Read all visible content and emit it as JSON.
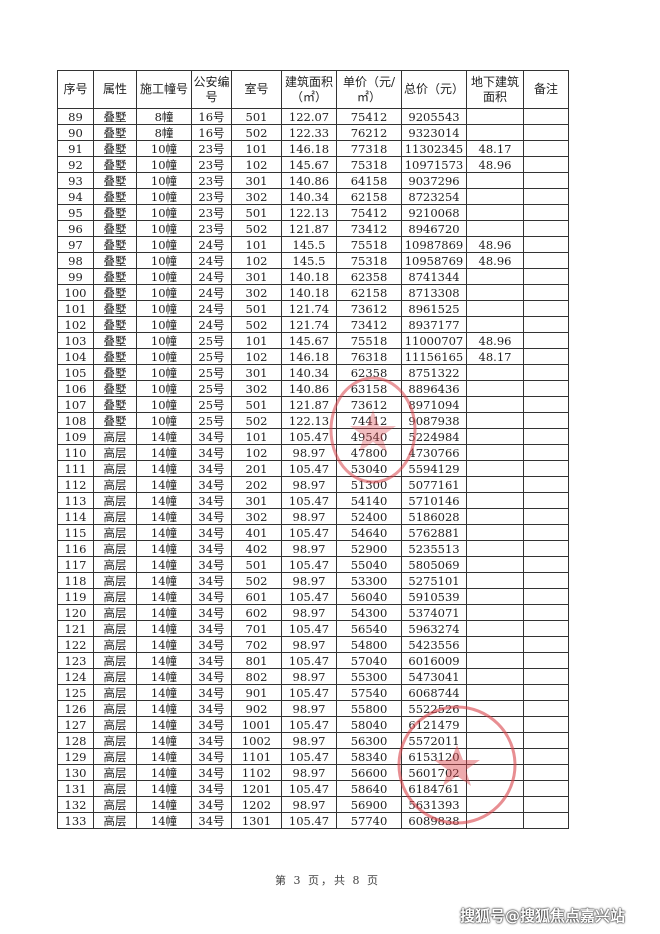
{
  "headers": [
    "序号",
    "属性",
    "施工幢号",
    "公安编号",
    "室号",
    "建筑面积（㎡）",
    "单价（元/㎡）",
    "总价（元）",
    "地下建筑面积",
    "备注"
  ],
  "rows": [
    [
      "89",
      "叠墅",
      "8幢",
      "16号",
      "501",
      "122.07",
      "75412",
      "9205543",
      "",
      ""
    ],
    [
      "90",
      "叠墅",
      "8幢",
      "16号",
      "502",
      "122.33",
      "76212",
      "9323014",
      "",
      ""
    ],
    [
      "91",
      "叠墅",
      "10幢",
      "23号",
      "101",
      "146.18",
      "77318",
      "11302345",
      "48.17",
      ""
    ],
    [
      "92",
      "叠墅",
      "10幢",
      "23号",
      "102",
      "145.67",
      "75318",
      "10971573",
      "48.96",
      ""
    ],
    [
      "93",
      "叠墅",
      "10幢",
      "23号",
      "301",
      "140.86",
      "64158",
      "9037296",
      "",
      ""
    ],
    [
      "94",
      "叠墅",
      "10幢",
      "23号",
      "302",
      "140.34",
      "62158",
      "8723254",
      "",
      ""
    ],
    [
      "95",
      "叠墅",
      "10幢",
      "23号",
      "501",
      "122.13",
      "75412",
      "9210068",
      "",
      ""
    ],
    [
      "96",
      "叠墅",
      "10幢",
      "23号",
      "502",
      "121.87",
      "73412",
      "8946720",
      "",
      ""
    ],
    [
      "97",
      "叠墅",
      "10幢",
      "24号",
      "101",
      "145.5",
      "75518",
      "10987869",
      "48.96",
      ""
    ],
    [
      "98",
      "叠墅",
      "10幢",
      "24号",
      "102",
      "145.5",
      "75318",
      "10958769",
      "48.96",
      ""
    ],
    [
      "99",
      "叠墅",
      "10幢",
      "24号",
      "301",
      "140.18",
      "62358",
      "8741344",
      "",
      ""
    ],
    [
      "100",
      "叠墅",
      "10幢",
      "24号",
      "302",
      "140.18",
      "62158",
      "8713308",
      "",
      ""
    ],
    [
      "101",
      "叠墅",
      "10幢",
      "24号",
      "501",
      "121.74",
      "73612",
      "8961525",
      "",
      ""
    ],
    [
      "102",
      "叠墅",
      "10幢",
      "24号",
      "502",
      "121.74",
      "73412",
      "8937177",
      "",
      ""
    ],
    [
      "103",
      "叠墅",
      "10幢",
      "25号",
      "101",
      "145.67",
      "75518",
      "11000707",
      "48.96",
      ""
    ],
    [
      "104",
      "叠墅",
      "10幢",
      "25号",
      "102",
      "146.18",
      "76318",
      "11156165",
      "48.17",
      ""
    ],
    [
      "105",
      "叠墅",
      "10幢",
      "25号",
      "301",
      "140.34",
      "62358",
      "8751322",
      "",
      ""
    ],
    [
      "106",
      "叠墅",
      "10幢",
      "25号",
      "302",
      "140.86",
      "63158",
      "8896436",
      "",
      ""
    ],
    [
      "107",
      "叠墅",
      "10幢",
      "25号",
      "501",
      "121.87",
      "73612",
      "8971094",
      "",
      ""
    ],
    [
      "108",
      "叠墅",
      "10幢",
      "25号",
      "502",
      "122.13",
      "74412",
      "9087938",
      "",
      ""
    ],
    [
      "109",
      "高层",
      "14幢",
      "34号",
      "101",
      "105.47",
      "49540",
      "5224984",
      "",
      ""
    ],
    [
      "110",
      "高层",
      "14幢",
      "34号",
      "102",
      "98.97",
      "47800",
      "4730766",
      "",
      ""
    ],
    [
      "111",
      "高层",
      "14幢",
      "34号",
      "201",
      "105.47",
      "53040",
      "5594129",
      "",
      ""
    ],
    [
      "112",
      "高层",
      "14幢",
      "34号",
      "202",
      "98.97",
      "51300",
      "5077161",
      "",
      ""
    ],
    [
      "113",
      "高层",
      "14幢",
      "34号",
      "301",
      "105.47",
      "54140",
      "5710146",
      "",
      ""
    ],
    [
      "114",
      "高层",
      "14幢",
      "34号",
      "302",
      "98.97",
      "52400",
      "5186028",
      "",
      ""
    ],
    [
      "115",
      "高层",
      "14幢",
      "34号",
      "401",
      "105.47",
      "54640",
      "5762881",
      "",
      ""
    ],
    [
      "116",
      "高层",
      "14幢",
      "34号",
      "402",
      "98.97",
      "52900",
      "5235513",
      "",
      ""
    ],
    [
      "117",
      "高层",
      "14幢",
      "34号",
      "501",
      "105.47",
      "55040",
      "5805069",
      "",
      ""
    ],
    [
      "118",
      "高层",
      "14幢",
      "34号",
      "502",
      "98.97",
      "53300",
      "5275101",
      "",
      ""
    ],
    [
      "119",
      "高层",
      "14幢",
      "34号",
      "601",
      "105.47",
      "56040",
      "5910539",
      "",
      ""
    ],
    [
      "120",
      "高层",
      "14幢",
      "34号",
      "602",
      "98.97",
      "54300",
      "5374071",
      "",
      ""
    ],
    [
      "121",
      "高层",
      "14幢",
      "34号",
      "701",
      "105.47",
      "56540",
      "5963274",
      "",
      ""
    ],
    [
      "122",
      "高层",
      "14幢",
      "34号",
      "702",
      "98.97",
      "54800",
      "5423556",
      "",
      ""
    ],
    [
      "123",
      "高层",
      "14幢",
      "34号",
      "801",
      "105.47",
      "57040",
      "6016009",
      "",
      ""
    ],
    [
      "124",
      "高层",
      "14幢",
      "34号",
      "802",
      "98.97",
      "55300",
      "5473041",
      "",
      ""
    ],
    [
      "125",
      "高层",
      "14幢",
      "34号",
      "901",
      "105.47",
      "57540",
      "6068744",
      "",
      ""
    ],
    [
      "126",
      "高层",
      "14幢",
      "34号",
      "902",
      "98.97",
      "55800",
      "5522526",
      "",
      ""
    ],
    [
      "127",
      "高层",
      "14幢",
      "34号",
      "1001",
      "105.47",
      "58040",
      "6121479",
      "",
      ""
    ],
    [
      "128",
      "高层",
      "14幢",
      "34号",
      "1002",
      "98.97",
      "56300",
      "5572011",
      "",
      ""
    ],
    [
      "129",
      "高层",
      "14幢",
      "34号",
      "1101",
      "105.47",
      "58340",
      "6153120",
      "",
      ""
    ],
    [
      "130",
      "高层",
      "14幢",
      "34号",
      "1102",
      "98.97",
      "56600",
      "5601702",
      "",
      ""
    ],
    [
      "131",
      "高层",
      "14幢",
      "34号",
      "1201",
      "105.47",
      "58640",
      "6184761",
      "",
      ""
    ],
    [
      "132",
      "高层",
      "14幢",
      "34号",
      "1202",
      "98.97",
      "56900",
      "5631393",
      "",
      ""
    ],
    [
      "133",
      "高层",
      "14幢",
      "34号",
      "1301",
      "105.47",
      "57740",
      "6089838",
      "",
      ""
    ]
  ],
  "footer": "第 3 页，共 8 页",
  "watermark": "搜狐号@搜狐焦点嘉兴站",
  "stamp_color": "#d9434a"
}
